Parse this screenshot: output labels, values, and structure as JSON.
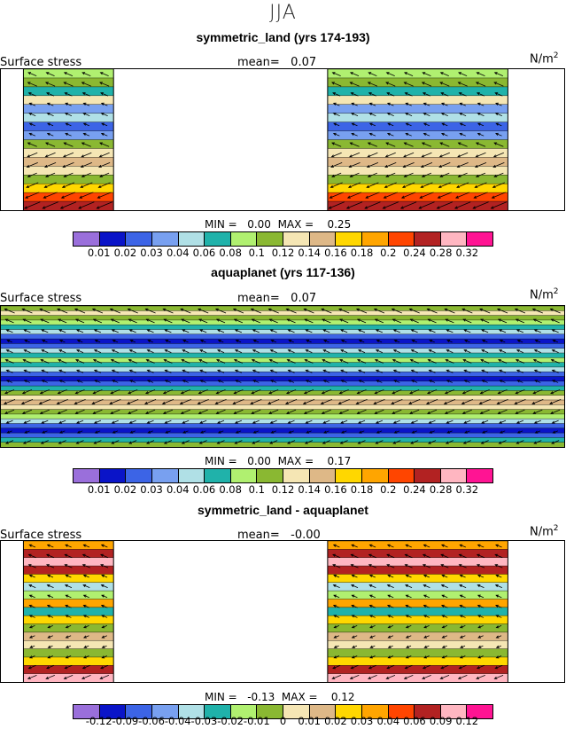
{
  "season": "JJA",
  "panels": [
    {
      "title": "symmetric_land (yrs 174-193)",
      "variable": "Surface stress",
      "mean_label": "mean=",
      "mean_value": "0.07",
      "units_base": "N/m",
      "units_exp": "2",
      "min_label": "MIN =",
      "min_value": "0.00",
      "max_label": "MAX =",
      "max_value": "0.25",
      "colorbar_ticks": [
        "0.01",
        "0.02",
        "0.03",
        "0.04",
        "0.06",
        "0.08",
        "0.1",
        "0.12",
        "0.14",
        "0.16",
        "0.18",
        "0.2",
        "0.24",
        "0.28",
        "0.32"
      ]
    },
    {
      "title": "aquaplanet (yrs 117-136)",
      "variable": "Surface stress",
      "mean_label": "mean=",
      "mean_value": "0.07",
      "units_base": "N/m",
      "units_exp": "2",
      "min_label": "MIN =",
      "min_value": "0.00",
      "max_label": "MAX =",
      "max_value": "0.17",
      "colorbar_ticks": [
        "0.01",
        "0.02",
        "0.03",
        "0.04",
        "0.06",
        "0.08",
        "0.1",
        "0.12",
        "0.14",
        "0.16",
        "0.18",
        "0.2",
        "0.24",
        "0.28",
        "0.32"
      ]
    },
    {
      "title": "symmetric_land - aquaplanet",
      "variable": "Surface stress",
      "mean_label": "mean=",
      "mean_value": "-0.00",
      "units_base": "N/m",
      "units_exp": "2",
      "min_label": "MIN =",
      "min_value": "-0.13",
      "max_label": "MAX =",
      "max_value": "0.12",
      "colorbar_ticks": [
        "-0.12",
        "-0.09",
        "-0.06",
        "-0.04",
        "-0.03",
        "-0.02",
        "-0.01",
        "0",
        "0.01",
        "0.02",
        "0.03",
        "0.04",
        "0.06",
        "0.09",
        "0.12"
      ]
    }
  ],
  "colorbar_colors": [
    "#9a6fdb",
    "#0a14c8",
    "#3c64e6",
    "#78a0f0",
    "#b0e0e6",
    "#20b2aa",
    "#b0f070",
    "#8ab832",
    "#f5e6b4",
    "#deb887",
    "#ffd700",
    "#ffa500",
    "#ff4500",
    "#b22222",
    "#ffb6c1",
    "#ff1493"
  ],
  "chart_data": [
    {
      "type": "heatmap",
      "title": "symmetric_land (yrs 174-193)",
      "field": "Surface stress (N/m2)",
      "mean": 0.07,
      "min": 0.0,
      "max": 0.25,
      "levels": [
        0.01,
        0.02,
        0.03,
        0.04,
        0.06,
        0.08,
        0.1,
        0.12,
        0.14,
        0.16,
        0.18,
        0.2,
        0.24,
        0.28,
        0.32
      ],
      "band_values_north_to_south": [
        0.08,
        0.1,
        0.06,
        0.12,
        0.03,
        0.04,
        0.02,
        0.03,
        0.1,
        0.12,
        0.14,
        0.12,
        0.1,
        0.16,
        0.2,
        0.24
      ],
      "land_strips_longitude_fraction": [
        [
          0.04,
          0.2
        ],
        [
          0.58,
          0.9
        ]
      ]
    },
    {
      "type": "heatmap",
      "title": "aquaplanet (yrs 117-136)",
      "field": "Surface stress (N/m2)",
      "mean": 0.07,
      "min": 0.0,
      "max": 0.17,
      "levels": [
        0.01,
        0.02,
        0.03,
        0.04,
        0.06,
        0.08,
        0.1,
        0.12,
        0.14,
        0.16,
        0.18,
        0.2,
        0.24,
        0.28,
        0.32
      ],
      "band_values_north_to_south": [
        0.1,
        0.12,
        0.1,
        0.08,
        0.06,
        0.04,
        0.02,
        0.01,
        0.02,
        0.04,
        0.06,
        0.08,
        0.06,
        0.04,
        0.02,
        0.01,
        0.02,
        0.06,
        0.1,
        0.12,
        0.14,
        0.12,
        0.1,
        0.08,
        0.04,
        0.02,
        0.01,
        0.02,
        0.06,
        0.1
      ]
    },
    {
      "type": "heatmap",
      "title": "symmetric_land - aquaplanet",
      "field": "Surface stress difference (N/m2)",
      "mean": -0.0,
      "min": -0.13,
      "max": 0.12,
      "levels": [
        -0.12,
        -0.09,
        -0.06,
        -0.04,
        -0.03,
        -0.02,
        -0.01,
        0,
        0.01,
        0.02,
        0.03,
        0.04,
        0.06,
        0.09,
        0.12
      ],
      "band_values_north_to_south": [
        0.03,
        0.06,
        0.09,
        0.06,
        0.02,
        -0.04,
        -0.02,
        0.03,
        -0.03,
        0.02,
        -0.01,
        0.01,
        0.0,
        -0.01,
        0.02,
        0.06,
        0.09
      ],
      "land_strips_longitude_fraction": [
        [
          0.04,
          0.2
        ],
        [
          0.58,
          0.9
        ]
      ]
    }
  ]
}
